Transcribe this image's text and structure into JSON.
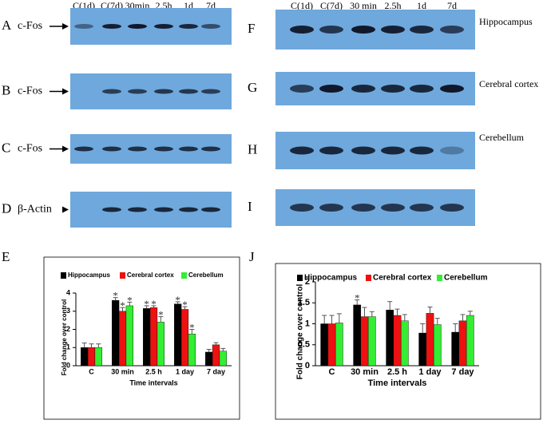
{
  "blots": {
    "left": {
      "lanes": [
        "C(1d)",
        "C(7d)",
        "30min",
        "2.5h",
        "1d",
        "7d"
      ],
      "panels": [
        {
          "letter": "A",
          "label": "c-Fos"
        },
        {
          "letter": "B",
          "label": "c-Fos"
        },
        {
          "letter": "C",
          "label": "c-Fos"
        },
        {
          "letter": "D",
          "label": "β-Actin"
        }
      ]
    },
    "right": {
      "lanes": [
        "C(1d)",
        "C(7d)",
        "30 min",
        "2.5h",
        "1d",
        "7d"
      ],
      "panels": [
        {
          "letter": "F",
          "label": "Hippocampus"
        },
        {
          "letter": "G",
          "label": "Cerebral cortex"
        },
        {
          "letter": "H",
          "label": "Cerebellum"
        },
        {
          "letter": "I"
        }
      ]
    }
  },
  "chart_data": [
    {
      "type": "bar",
      "panel_label": "E",
      "ylabel": "Fold change over control",
      "xlabel": "Time intervals",
      "categories": [
        "C",
        "30 min",
        "2.5 h",
        "1 day",
        "7 day"
      ],
      "ylim": [
        0,
        4
      ],
      "yticks": [
        0,
        1,
        2,
        3,
        4
      ],
      "series": [
        {
          "name": "Hippocampus",
          "color": "#000000",
          "values": [
            1.0,
            3.6,
            3.15,
            3.4,
            0.75
          ],
          "errors": [
            0.25,
            0.15,
            0.15,
            0.12,
            0.15
          ],
          "value_labels": [
            null,
            "*",
            "*",
            "*",
            null
          ]
        },
        {
          "name": "Cerebral cortex",
          "color": "#ee1111",
          "values": [
            1.0,
            3.0,
            3.2,
            3.1,
            1.15
          ],
          "errors": [
            0.2,
            0.2,
            0.1,
            0.15,
            0.12
          ],
          "value_labels": [
            null,
            "*",
            "*",
            "*",
            null
          ]
        },
        {
          "name": "Cerebellum",
          "color": "#33ee33",
          "values": [
            1.0,
            3.3,
            2.4,
            1.75,
            0.8
          ],
          "errors": [
            0.2,
            0.2,
            0.3,
            0.25,
            0.15
          ],
          "value_labels": [
            null,
            "*",
            "*",
            "*",
            null
          ]
        }
      ]
    },
    {
      "type": "bar",
      "panel_label": "J",
      "ylabel": "Fold change over control",
      "xlabel": "Time intervals",
      "categories": [
        "C",
        "30 min",
        "2.5 h",
        "1 day",
        "7 day"
      ],
      "ylim": [
        0,
        2
      ],
      "yticks": [
        0,
        0.5,
        1,
        1.5,
        2
      ],
      "series": [
        {
          "name": "Hippocampus",
          "color": "#000000",
          "values": [
            1.0,
            1.45,
            1.33,
            0.78,
            0.8
          ],
          "errors": [
            0.2,
            0.12,
            0.2,
            0.22,
            0.2
          ],
          "value_labels": [
            null,
            "*",
            null,
            null,
            null
          ]
        },
        {
          "name": "Cerebral cortex",
          "color": "#ee1111",
          "values": [
            1.0,
            1.17,
            1.2,
            1.25,
            1.07
          ],
          "errors": [
            0.2,
            0.22,
            0.15,
            0.15,
            0.15
          ],
          "value_labels": [
            null,
            null,
            null,
            null,
            null
          ]
        },
        {
          "name": "Cerebellum",
          "color": "#33ee33",
          "values": [
            1.02,
            1.17,
            1.07,
            0.98,
            1.2
          ],
          "errors": [
            0.22,
            0.12,
            0.15,
            0.15,
            0.1
          ],
          "value_labels": [
            null,
            null,
            null,
            null,
            null
          ]
        }
      ]
    }
  ]
}
